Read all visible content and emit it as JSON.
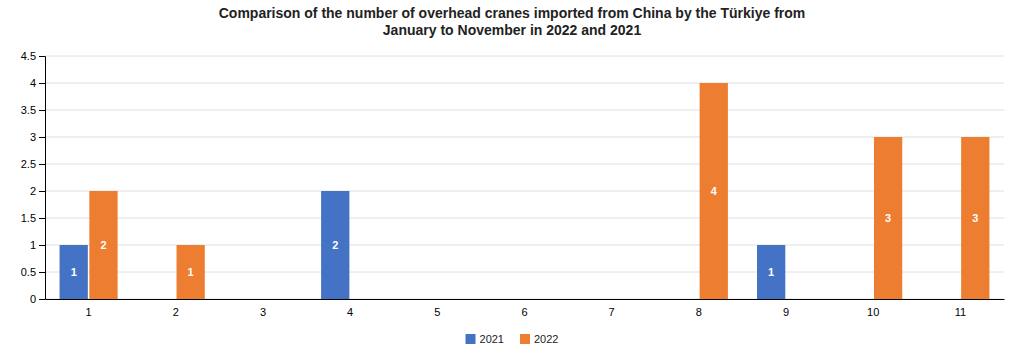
{
  "chart_data": {
    "type": "bar",
    "title": "Comparison of the number of overhead cranes imported from China by the Türkiye from\nJanuary to November in 2022 and 2021",
    "categories": [
      "1",
      "2",
      "3",
      "4",
      "5",
      "6",
      "7",
      "8",
      "9",
      "10",
      "11"
    ],
    "series": [
      {
        "name": "2021",
        "color": "#4472C4",
        "values": [
          1,
          0,
          0,
          2,
          0,
          0,
          0,
          0,
          1,
          0,
          0
        ]
      },
      {
        "name": "2022",
        "color": "#ED7D31",
        "values": [
          2,
          1,
          0,
          0,
          0,
          0,
          0,
          4,
          0,
          3,
          3
        ]
      }
    ],
    "ylim": [
      0,
      4.5
    ],
    "yticks": [
      0,
      0.5,
      1,
      1.5,
      2,
      2.5,
      3,
      3.5,
      4,
      4.5
    ],
    "grid": true,
    "legend": "bottom",
    "data_labels": true
  }
}
